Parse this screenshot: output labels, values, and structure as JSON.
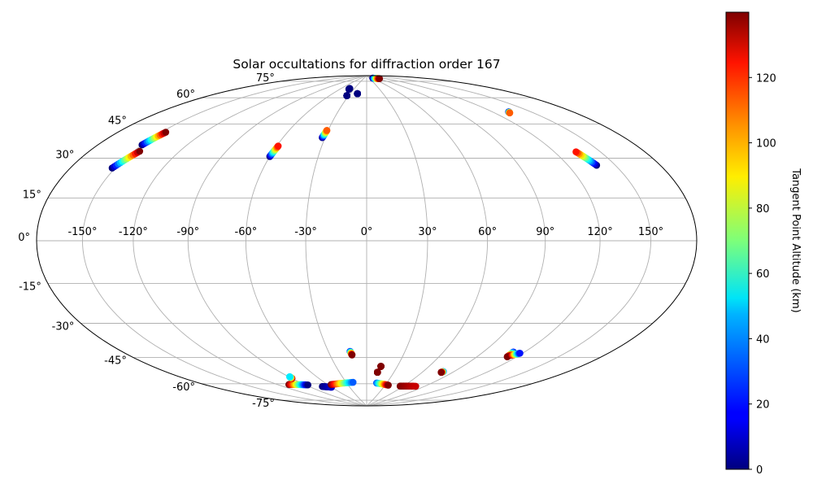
{
  "chart_data": {
    "type": "scatter",
    "projection": "hammer",
    "title": "Solar occultations for diffraction order 167",
    "grid": true,
    "lon_tick_labels": [
      "-150°",
      "-120°",
      "-90°",
      "-60°",
      "-30°",
      "0°",
      "30°",
      "60°",
      "90°",
      "120°",
      "150°"
    ],
    "lon_ticks": [
      -150,
      -120,
      -90,
      -60,
      -30,
      0,
      30,
      60,
      90,
      120,
      150
    ],
    "lat_tick_labels": [
      "-75°",
      "-60°",
      "-45°",
      "-30°",
      "-15°",
      "0°",
      "15°",
      "30°",
      "45°",
      "60°",
      "75°"
    ],
    "lat_ticks": [
      -75,
      -60,
      -45,
      -30,
      -15,
      0,
      15,
      30,
      45,
      60,
      75
    ],
    "colorbar": {
      "label": "Tangent Point Altitude (km)",
      "range": [
        0,
        140
      ],
      "ticks": [
        0,
        20,
        40,
        60,
        80,
        100,
        120
      ],
      "tick_labels": [
        "0",
        "20",
        "40",
        "60",
        "80",
        "100",
        "120"
      ],
      "colormap": "jet"
    },
    "tracks": [
      {
        "lon_start": -150,
        "lat_start": 39.5,
        "lon_end": -147,
        "lat_end": 46.0,
        "alt_start": 0,
        "alt_end": 140
      },
      {
        "lon_start": -152,
        "lat_start": 29.0,
        "lon_end": -146,
        "lat_end": 37.0,
        "alt_start": 0,
        "alt_end": 140
      },
      {
        "lon_start": -60,
        "lat_start": 41.0,
        "lon_end": -59,
        "lat_end": 46.5,
        "alt_start": 0,
        "alt_end": 120
      },
      {
        "lon_start": -32,
        "lat_start": 52.0,
        "lon_end": -31,
        "lat_end": 56.0,
        "alt_start": 0,
        "alt_end": 110
      },
      {
        "lon_start": -41,
        "lat_start": 80.5,
        "lon_end": -41,
        "lat_end": 81.0,
        "alt_start": 0,
        "alt_end": 0
      },
      {
        "lon_start": -33,
        "lat_start": 76.5,
        "lon_end": -33,
        "lat_end": 76.5,
        "alt_start": 0,
        "alt_end": 0
      },
      {
        "lon_start": -17,
        "lat_start": 78.0,
        "lon_end": -17,
        "lat_end": 78.0,
        "alt_start": 0,
        "alt_end": 0
      },
      {
        "lon_start": 65,
        "lat_start": 88.0,
        "lon_end": 98,
        "lat_end": 87.0,
        "alt_start": 0,
        "alt_end": 140
      },
      {
        "lon_start": 133,
        "lat_start": 59.0,
        "lon_end": 132,
        "lat_end": 58.5,
        "alt_start": 0,
        "alt_end": 110
      },
      {
        "lon_start": 138,
        "lat_start": 31.5,
        "lon_end": 134,
        "lat_end": 38.0,
        "alt_start": 0,
        "alt_end": 120
      },
      {
        "lon_start": -13,
        "lat_start": -56.5,
        "lon_end": -12,
        "lat_end": -58.5,
        "alt_start": 20,
        "alt_end": 140
      },
      {
        "lon_start": 14,
        "lat_start": -65.0,
        "lon_end": 14,
        "lat_end": -65.0,
        "alt_start": 140,
        "alt_end": 140
      },
      {
        "lon_start": 12,
        "lat_start": -68.5,
        "lon_end": 12,
        "lat_end": -68.5,
        "alt_start": 140,
        "alt_end": 140
      },
      {
        "lon_start": 80,
        "lat_start": -65.5,
        "lon_end": 79,
        "lat_end": -66.0,
        "alt_start": 30,
        "alt_end": 140
      },
      {
        "lon_start": 112,
        "lat_start": -51.5,
        "lon_end": 113,
        "lat_end": -54.0,
        "alt_start": 20,
        "alt_end": 140
      },
      {
        "lon_start": 114,
        "lat_start": -53.0,
        "lon_end": 118,
        "lat_end": -51.5,
        "alt_start": 140,
        "alt_end": 20
      },
      {
        "lon_start": -108,
        "lat_start": -71.5,
        "lon_end": -87,
        "lat_end": -73.5,
        "alt_start": 140,
        "alt_end": 0
      },
      {
        "lon_start": -90,
        "lat_start": -69.0,
        "lon_end": -89,
        "lat_end": -68.0,
        "alt_start": 140,
        "alt_end": 50
      },
      {
        "lon_start": -72,
        "lat_start": -75.5,
        "lon_end": -60,
        "lat_end": -76.5,
        "alt_start": 0,
        "alt_end": 10
      },
      {
        "lon_start": -55,
        "lat_start": -75.0,
        "lon_end": -20,
        "lat_end": -74.5,
        "alt_start": 140,
        "alt_end": 30
      },
      {
        "lon_start": 15,
        "lat_start": -75.0,
        "lon_end": 35,
        "lat_end": -76.0,
        "alt_start": 30,
        "alt_end": 140
      },
      {
        "lon_start": 55,
        "lat_start": -76.0,
        "lon_end": 78,
        "lat_end": -75.0,
        "alt_start": 140,
        "alt_end": 130
      }
    ]
  }
}
